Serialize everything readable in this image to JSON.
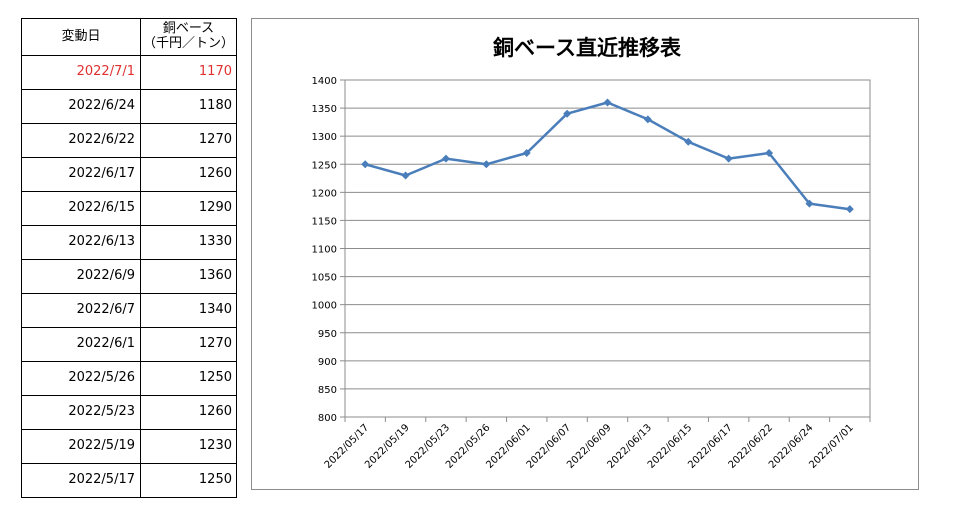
{
  "table": {
    "header": {
      "date": "変動日",
      "price_line1": "銅ベース",
      "price_line2": "（千円／トン）"
    },
    "rows": [
      {
        "date": "2022/7/1",
        "price": "1170",
        "highlight": true
      },
      {
        "date": "2022/6/24",
        "price": "1180"
      },
      {
        "date": "2022/6/22",
        "price": "1270"
      },
      {
        "date": "2022/6/17",
        "price": "1260"
      },
      {
        "date": "2022/6/15",
        "price": "1290"
      },
      {
        "date": "2022/6/13",
        "price": "1330"
      },
      {
        "date": "2022/6/9",
        "price": "1360"
      },
      {
        "date": "2022/6/7",
        "price": "1340"
      },
      {
        "date": "2022/6/1",
        "price": "1270"
      },
      {
        "date": "2022/5/26",
        "price": "1250"
      },
      {
        "date": "2022/5/23",
        "price": "1260"
      },
      {
        "date": "2022/5/19",
        "price": "1230"
      },
      {
        "date": "2022/5/17",
        "price": "1250"
      }
    ],
    "highlight_color": "#e03030"
  },
  "chart_data": {
    "type": "line",
    "title": "銅ベース直近推移表",
    "xlabel": "",
    "ylabel": "",
    "categories": [
      "2022/05/17",
      "2022/05/19",
      "2022/05/23",
      "2022/05/26",
      "2022/06/01",
      "2022/06/07",
      "2022/06/09",
      "2022/06/13",
      "2022/06/15",
      "2022/06/17",
      "2022/06/22",
      "2022/06/24",
      "2022/07/01"
    ],
    "series": [
      {
        "values": [
          1250,
          1230,
          1260,
          1250,
          1270,
          1340,
          1360,
          1330,
          1290,
          1260,
          1270,
          1180,
          1170
        ],
        "color": "#4a7ebb",
        "marker": "diamond"
      }
    ],
    "ylim": [
      800,
      1400
    ],
    "yticks": [
      800,
      850,
      900,
      950,
      1000,
      1050,
      1100,
      1150,
      1200,
      1250,
      1300,
      1350,
      1400
    ],
    "grid": true,
    "legend": "none"
  }
}
